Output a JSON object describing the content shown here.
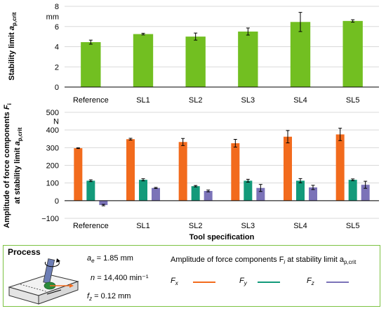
{
  "chart_data": [
    {
      "type": "bar",
      "ylabel": "Stability limit a_p,crit",
      "unit": "mm",
      "ylim": [
        0,
        8
      ],
      "yticks": [
        0,
        2,
        4,
        6,
        8
      ],
      "categories": [
        "Reference",
        "SL1",
        "SL2",
        "SL3",
        "SL4",
        "SL5"
      ],
      "series": [
        {
          "values": [
            4.45,
            5.25,
            5.0,
            5.5,
            6.45,
            6.55
          ],
          "errors": [
            0.2,
            0.08,
            0.35,
            0.35,
            0.95,
            0.12
          ]
        }
      ],
      "grid": true
    },
    {
      "type": "bar",
      "ylabel": "Amplitude of force components F_i at stability limit a_p,crit",
      "unit": "N",
      "ylim": [
        -100,
        500
      ],
      "yticks": [
        -100,
        0,
        100,
        200,
        300,
        400,
        500
      ],
      "xlabel": "Tool specification",
      "categories": [
        "Reference",
        "SL1",
        "SL2",
        "SL3",
        "SL4",
        "SL5"
      ],
      "series": [
        {
          "name": "Fx",
          "values": [
            297,
            348,
            332,
            325,
            362,
            375
          ],
          "errors": [
            2,
            5,
            20,
            22,
            35,
            35
          ]
        },
        {
          "name": "Fy",
          "values": [
            113,
            118,
            82,
            113,
            113,
            118
          ],
          "errors": [
            5,
            6,
            4,
            8,
            12,
            5
          ]
        },
        {
          "name": "Fz",
          "values": [
            -25,
            72,
            55,
            72,
            75,
            90
          ],
          "errors": [
            4,
            3,
            5,
            20,
            12,
            20
          ]
        }
      ],
      "grid": true
    }
  ],
  "colors": {
    "Fx": "#f26b1d",
    "Fy": "#139a7a",
    "Fz": "#7b73b8",
    "stability": "#72bf21",
    "frame": "#7cc242"
  },
  "process": {
    "title": "Process",
    "ae": {
      "label": "a",
      "sub": "e",
      "value": "= 1.85 mm"
    },
    "n": {
      "label": "n",
      "value": "= 14,400 min⁻¹"
    },
    "fz": {
      "label": "f",
      "sub": "z",
      "value": "= 0.12 mm"
    }
  },
  "legend": {
    "title": "Amplitude of force components F",
    "title_sub": "i",
    "title_rest": " at stability limit a",
    "title_rest_sub": "p,crit",
    "items": [
      {
        "label": "F",
        "sub": "x"
      },
      {
        "label": "F",
        "sub": "y"
      },
      {
        "label": "F",
        "sub": "z"
      }
    ]
  }
}
